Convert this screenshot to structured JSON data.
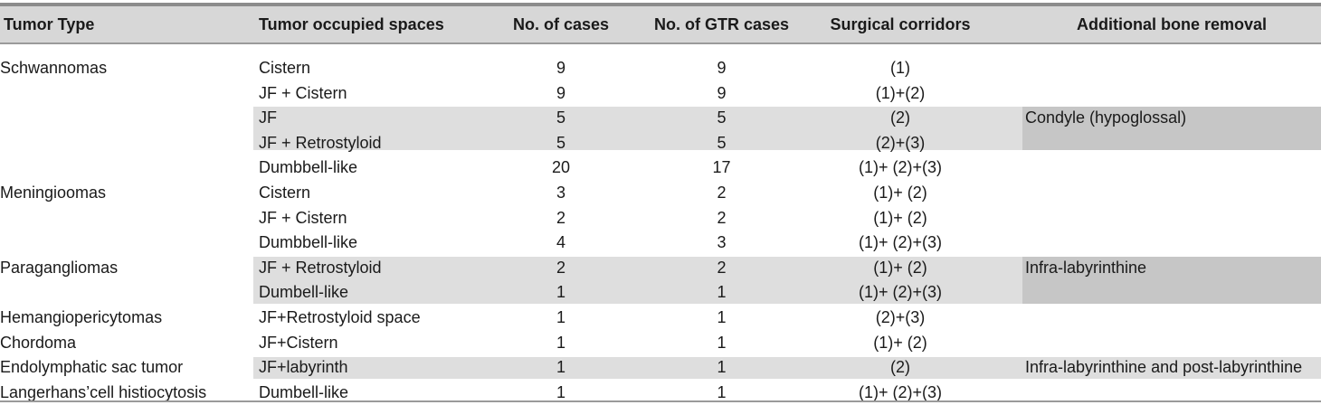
{
  "table": {
    "headers": [
      "Tumor Type",
      "Tumor occupied spaces",
      "No. of cases",
      "No. of GTR cases",
      "Surgical corridors",
      "Additional bone removal"
    ],
    "rows": [
      {
        "type": "Schwannomas",
        "space": "Cistern",
        "cases": "9",
        "gtr": "9",
        "corridors": "(1)",
        "bone": ""
      },
      {
        "type": "",
        "space": "JF + Cistern",
        "cases": "9",
        "gtr": "9",
        "corridors": "(1)+(2)",
        "bone": ""
      },
      {
        "type": "",
        "space": "JF",
        "cases": "5",
        "gtr": "5",
        "corridors": "(2)",
        "bone": "Condyle (hypoglossal)"
      },
      {
        "type": "",
        "space": "JF + Retrostyloid",
        "cases": "5",
        "gtr": "5",
        "corridors": "(2)+(3)",
        "bone": ""
      },
      {
        "type": "",
        "space": "Dumbbell-like",
        "cases": "20",
        "gtr": "17",
        "corridors": "(1)+ (2)+(3)",
        "bone": ""
      },
      {
        "type": "Meningioomas",
        "space": "Cistern",
        "cases": "3",
        "gtr": "2",
        "corridors": "(1)+ (2)",
        "bone": ""
      },
      {
        "type": "",
        "space": "JF + Cistern",
        "cases": "2",
        "gtr": "2",
        "corridors": "(1)+ (2)",
        "bone": ""
      },
      {
        "type": "",
        "space": "Dumbbell-like",
        "cases": "4",
        "gtr": "3",
        "corridors": "(1)+ (2)+(3)",
        "bone": ""
      },
      {
        "type": "Paragangliomas",
        "space": "JF + Retrostyloid",
        "cases": "2",
        "gtr": "2",
        "corridors": "(1)+ (2)",
        "bone": "Infra-labyrinthine"
      },
      {
        "type": "",
        "space": "Dumbell-like",
        "cases": "1",
        "gtr": "1",
        "corridors": "(1)+ (2)+(3)",
        "bone": ""
      },
      {
        "type": "Hemangiopericytomas",
        "space": "JF+Retrostyloid space",
        "cases": "1",
        "gtr": "1",
        "corridors": "(2)+(3)",
        "bone": ""
      },
      {
        "type": "Chordoma",
        "space": "JF+Cistern",
        "cases": "1",
        "gtr": "1",
        "corridors": "(1)+ (2)",
        "bone": ""
      },
      {
        "type": "Endolymphatic sac tumor",
        "space": "JF+labyrinth",
        "cases": "1",
        "gtr": "1",
        "corridors": "(2)",
        "bone": "Infra-labyrinthine and post-labyrinthine"
      },
      {
        "type": "Langerhans’cell histiocytosis",
        "space": "Dumbell-like",
        "cases": "1",
        "gtr": "1",
        "corridors": "(1)+ (2)+(3)",
        "bone": ""
      }
    ]
  }
}
